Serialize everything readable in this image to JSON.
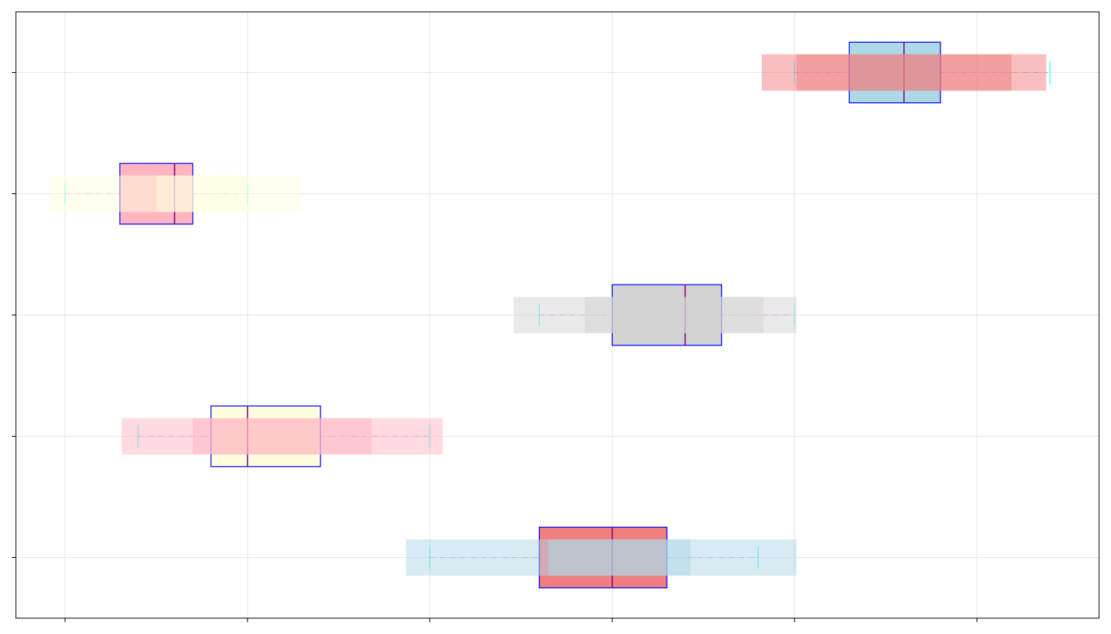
{
  "chart_data": {
    "type": "boxplot",
    "orientation": "horizontal",
    "categories": [
      null,
      null,
      null,
      null,
      null
    ],
    "xlim": [
      -0.27,
      5.67
    ],
    "xticks": [
      0,
      1,
      2,
      3,
      4,
      5
    ],
    "ylim": [
      0.5,
      5.5
    ],
    "grid": true,
    "box_edge_color": "#0000ff",
    "median_color": "#800080",
    "whisker_color": "#ee82ee",
    "cap_color": "#00ffff",
    "boxes": [
      {
        "whislo": 2.0,
        "q1": 2.6,
        "med": 3.0,
        "q3": 3.3,
        "whishi": 3.8,
        "facecolor": "#f08080",
        "span_color": "#add8e6",
        "spans": [
          [
            1.87,
            4.01
          ],
          [
            2.65,
            3.43
          ]
        ]
      },
      {
        "whislo": 0.4,
        "q1": 0.8,
        "med": 1.0,
        "q3": 1.4,
        "whishi": 2.0,
        "facecolor": "#ffffe0",
        "span_color": "#ffb6c1",
        "spans": [
          [
            0.31,
            2.07
          ],
          [
            0.7,
            1.68
          ]
        ]
      },
      {
        "whislo": 2.6,
        "q1": 3.0,
        "med": 3.4,
        "q3": 3.6,
        "whishi": 4.0,
        "facecolor": "#d3d3d3",
        "span_color": "#d3d3d3",
        "spans": [
          [
            2.46,
            4.01
          ],
          [
            2.85,
            3.83
          ]
        ]
      },
      {
        "whislo": 0.0,
        "q1": 0.3,
        "med": 0.6,
        "q3": 0.7,
        "whishi": 1.0,
        "facecolor": "#ffb6c1",
        "span_color": "#ffffe0",
        "spans": [
          [
            -0.08,
            1.29
          ],
          [
            0.5,
            1.0
          ]
        ]
      },
      {
        "whislo": 4.0,
        "q1": 4.3,
        "med": 4.6,
        "q3": 4.8,
        "whishi": 5.4,
        "facecolor": "#add8e6",
        "span_color": "#f08080",
        "spans": [
          [
            3.82,
            5.38
          ],
          [
            4.01,
            5.19
          ]
        ]
      }
    ]
  }
}
